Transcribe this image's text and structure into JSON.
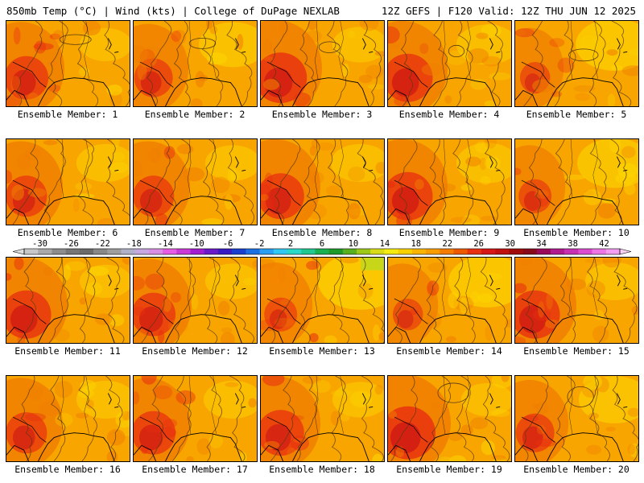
{
  "header": {
    "title_left": "850mb Temp (°C) | Wind (kts) | College of DuPage NEXLAB",
    "title_right": "12Z GEFS | F120 Valid: 12Z THU JUN 12 2025"
  },
  "panels": [
    {
      "label": "Ensemble Member: 1",
      "warm_west": 0.75,
      "hot_core": 0.45,
      "cool_ne": 0.2
    },
    {
      "label": "Ensemble Member: 2",
      "warm_west": 0.65,
      "hot_core": 0.35,
      "cool_ne": 0.45
    },
    {
      "label": "Ensemble Member: 3",
      "warm_west": 0.85,
      "hot_core": 0.6,
      "cool_ne": 0.25
    },
    {
      "label": "Ensemble Member: 4",
      "warm_west": 0.8,
      "hot_core": 0.55,
      "cool_ne": 0.35
    },
    {
      "label": "Ensemble Member: 5",
      "warm_west": 0.45,
      "hot_core": 0.2,
      "cool_ne": 0.6
    },
    {
      "label": "Ensemble Member: 6",
      "warm_west": 0.7,
      "hot_core": 0.4,
      "cool_ne": 0.3
    },
    {
      "label": "Ensemble Member: 7",
      "warm_west": 0.7,
      "hot_core": 0.4,
      "cool_ne": 0.25
    },
    {
      "label": "Ensemble Member: 8",
      "warm_west": 0.8,
      "hot_core": 0.5,
      "cool_ne": 0.3
    },
    {
      "label": "Ensemble Member: 9",
      "warm_west": 0.8,
      "hot_core": 0.55,
      "cool_ne": 0.35
    },
    {
      "label": "Ensemble Member: 10",
      "warm_west": 0.5,
      "hot_core": 0.25,
      "cool_ne": 0.55
    },
    {
      "label": "Ensemble Member: 11",
      "warm_west": 0.85,
      "hot_core": 0.55,
      "cool_ne": 0.2
    },
    {
      "label": "Ensemble Member: 12",
      "warm_west": 0.75,
      "hot_core": 0.45,
      "cool_ne": 0.25
    },
    {
      "label": "Ensemble Member: 13",
      "warm_west": 0.55,
      "hot_core": 0.25,
      "cool_ne": 0.7
    },
    {
      "label": "Ensemble Member: 14",
      "warm_west": 0.5,
      "hot_core": 0.2,
      "cool_ne": 0.6
    },
    {
      "label": "Ensemble Member: 15",
      "warm_west": 0.85,
      "hot_core": 0.55,
      "cool_ne": 0.3
    },
    {
      "label": "Ensemble Member: 16",
      "warm_west": 0.7,
      "hot_core": 0.4,
      "cool_ne": 0.3
    },
    {
      "label": "Ensemble Member: 17",
      "warm_west": 0.7,
      "hot_core": 0.45,
      "cool_ne": 0.3
    },
    {
      "label": "Ensemble Member: 18",
      "warm_west": 0.8,
      "hot_core": 0.5,
      "cool_ne": 0.25
    },
    {
      "label": "Ensemble Member: 19",
      "warm_west": 0.9,
      "hot_core": 0.65,
      "cool_ne": 0.2
    },
    {
      "label": "Ensemble Member: 20",
      "warm_west": 0.6,
      "hot_core": 0.35,
      "cool_ne": 0.5
    }
  ],
  "colorbar": {
    "tick_labels": [
      "-30",
      "-26",
      "-22",
      "-18",
      "-14",
      "-10",
      "-6",
      "-2",
      "2",
      "6",
      "10",
      "14",
      "18",
      "22",
      "26",
      "30",
      "34",
      "38",
      "42"
    ],
    "colors": [
      "#c7c7c7",
      "#a9a9a9",
      "#8c8c8c",
      "#767676",
      "#6b6b6b",
      "#888888",
      "#9e9e9e",
      "#b0b0c8",
      "#c6a7e0",
      "#d88ee4",
      "#e75ce4",
      "#c93ad6",
      "#a21dd0",
      "#6a1ac8",
      "#3a1cc4",
      "#1a3fd0",
      "#1b6fe0",
      "#2a9ef0",
      "#30c8f2",
      "#2ad8c8",
      "#20c890",
      "#18b050",
      "#1e9a2a",
      "#58b020",
      "#9cc818",
      "#d8dc18",
      "#f4ec10",
      "#f8d000",
      "#f8b400",
      "#f89c00",
      "#f47c00",
      "#ee5800",
      "#e83010",
      "#d81818",
      "#c01010",
      "#a00c0c",
      "#880a1a",
      "#9a0a5a",
      "#b21a90",
      "#c830b4",
      "#dc4cd0",
      "#ec74e4",
      "#f49cf0"
    ],
    "min": -32,
    "max": 44,
    "tick_start": -30,
    "tick_step": 4
  },
  "field_colors": {
    "cool": "#fcd600",
    "base": "#f8a500",
    "warm": "#f07e00",
    "hot": "#e83010",
    "hottest": "#cc1515",
    "contour": "#5a3a10",
    "coast": "#000000",
    "green": "#c8d61a"
  }
}
